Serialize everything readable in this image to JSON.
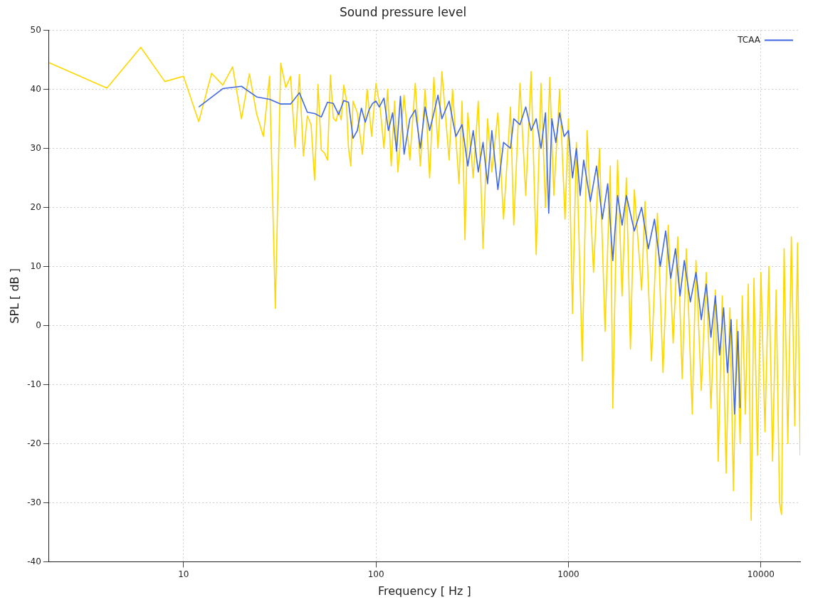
{
  "chart_data": {
    "type": "line",
    "title": "Sound pressure level",
    "xlabel": "Frequency [ Hz ]",
    "ylabel": "SPL [ dB ]",
    "log": "x",
    "xlim": [
      2,
      16000
    ],
    "xticks": [
      10,
      100,
      1000,
      10000
    ],
    "ylim": [
      -40,
      50
    ],
    "yticks": [
      -40,
      -30,
      -20,
      -10,
      0,
      10,
      20,
      30,
      40,
      50
    ],
    "grid": true,
    "legend": "top right",
    "marker": "none",
    "line_style": "solid",
    "series": [
      {
        "color": "#ffd700",
        "x": [
          2,
          4,
          6,
          8,
          10,
          12,
          14,
          16,
          18,
          20,
          22,
          24,
          26,
          28,
          30,
          32,
          34,
          36,
          38,
          40,
          42,
          44,
          46,
          48,
          50,
          52,
          54,
          56,
          58,
          60,
          62,
          64,
          66,
          68,
          70,
          72,
          74,
          76,
          80,
          85,
          90,
          95,
          100,
          105,
          110,
          115,
          120,
          125,
          130,
          140,
          150,
          160,
          170,
          180,
          190,
          200,
          210,
          220,
          240,
          250,
          270,
          280,
          290,
          300,
          320,
          340,
          360,
          380,
          400,
          430,
          460,
          500,
          520,
          560,
          600,
          640,
          680,
          720,
          760,
          800,
          840,
          900,
          960,
          1000,
          1050,
          1100,
          1180,
          1250,
          1350,
          1450,
          1550,
          1650,
          1700,
          1800,
          1900,
          2000,
          2100,
          2200,
          2400,
          2500,
          2700,
          2900,
          3100,
          3300,
          3500,
          3700,
          3900,
          4100,
          4400,
          4600,
          4900,
          5200,
          5500,
          5800,
          6000,
          6300,
          6600,
          6900,
          7200,
          7500,
          7800,
          8000,
          8300,
          8600,
          8900,
          9200,
          9600,
          10000,
          10500,
          11000,
          11500,
          12000,
          12500,
          12800,
          13200,
          13800,
          14400,
          15000,
          15500,
          16000
        ],
        "values": [
          44.5,
          40.2,
          47.1,
          41.3,
          42.2,
          34.5,
          42.7,
          40.7,
          43.8,
          35,
          42.6,
          35.8,
          32,
          42.2,
          2.9,
          44.4,
          40.3,
          42.2,
          30.2,
          42.5,
          28.7,
          35.5,
          34,
          24.6,
          40.8,
          29.7,
          29.2,
          28,
          42.4,
          35.1,
          34.6,
          36.4,
          34.8,
          40.7,
          38.5,
          30,
          27,
          38,
          36,
          29,
          40,
          32,
          41,
          37,
          30,
          40,
          27,
          38,
          26,
          39,
          28,
          41,
          27,
          40,
          25,
          42,
          30,
          43,
          28,
          40,
          24,
          38,
          14.5,
          36,
          25,
          38,
          13,
          35,
          26,
          36,
          18,
          37,
          17,
          41,
          22,
          43,
          12,
          41,
          20,
          42,
          22,
          40,
          18,
          35,
          2,
          31,
          -6,
          33,
          9,
          30,
          -1,
          27,
          -14,
          28,
          5,
          25,
          -4,
          23,
          6,
          21,
          -6,
          19,
          -8,
          17,
          -3,
          15,
          -9,
          13,
          -15,
          11,
          -11,
          9,
          -14,
          6,
          -23,
          5,
          -25,
          3,
          -28,
          1,
          -20,
          5,
          -15,
          7,
          -33,
          8,
          -22,
          9,
          -18,
          10,
          -23,
          6,
          -30,
          -32,
          13,
          -20,
          15,
          -17,
          14,
          -22
        ]
      },
      {
        "name": "TCAA",
        "color": "#4169e1",
        "x": [
          12,
          16,
          20,
          24,
          28,
          32,
          36,
          40,
          44,
          48,
          52,
          56,
          60,
          64,
          68,
          72,
          76,
          80,
          84,
          88,
          92,
          96,
          100,
          104,
          110,
          116,
          122,
          128,
          134,
          140,
          150,
          160,
          170,
          180,
          190,
          200,
          210,
          220,
          240,
          260,
          280,
          300,
          320,
          340,
          360,
          380,
          400,
          430,
          460,
          500,
          520,
          560,
          600,
          640,
          680,
          720,
          760,
          790,
          820,
          860,
          900,
          950,
          1000,
          1050,
          1100,
          1150,
          1200,
          1300,
          1400,
          1500,
          1600,
          1700,
          1800,
          1900,
          2000,
          2200,
          2400,
          2600,
          2800,
          3000,
          3200,
          3400,
          3600,
          3800,
          4000,
          4300,
          4600,
          4900,
          5200,
          5500,
          5800,
          6100,
          6400,
          6700,
          7000,
          7300,
          7600,
          7800
        ],
        "values": [
          37,
          40.1,
          40.5,
          38.7,
          38.3,
          37.5,
          37.5,
          39.4,
          36.1,
          35.9,
          35.3,
          37.8,
          37.6,
          35.7,
          38.1,
          37.8,
          31.7,
          33,
          36.8,
          34.4,
          36.5,
          37.6,
          38,
          37,
          38.5,
          33,
          36,
          29.5,
          38.8,
          29,
          35,
          36.5,
          30,
          37,
          33,
          36,
          39,
          35,
          38,
          32,
          34,
          27,
          33,
          26,
          31,
          24,
          33,
          23,
          31,
          30,
          35,
          34,
          37,
          33,
          35,
          30,
          36,
          19,
          35,
          31,
          36,
          32,
          33,
          25,
          30,
          22,
          28,
          21,
          27,
          18,
          24,
          11,
          22,
          17,
          22,
          16,
          20,
          13,
          18,
          10,
          16,
          8,
          13,
          5,
          11,
          4,
          9,
          1,
          7,
          -2,
          5,
          -5,
          3,
          -8,
          1,
          -15,
          -1,
          -14
        ]
      }
    ]
  }
}
